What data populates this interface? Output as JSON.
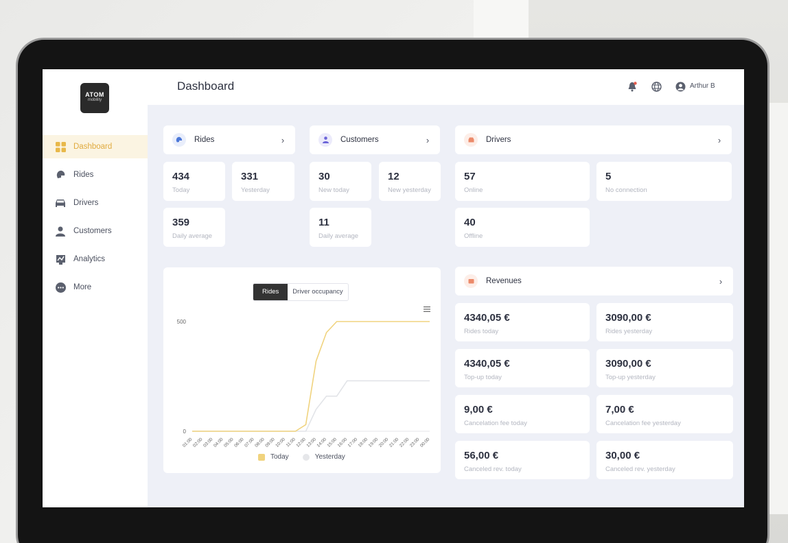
{
  "header": {
    "title": "Dashboard",
    "user_name": "Arthur B"
  },
  "logo": {
    "line1": "ATOM",
    "line2": "mobility"
  },
  "sidebar": {
    "items": [
      {
        "label": "Dashboard",
        "icon": "grid-icon",
        "active": true
      },
      {
        "label": "Rides",
        "icon": "helmet-icon"
      },
      {
        "label": "Drivers",
        "icon": "car-icon"
      },
      {
        "label": "Customers",
        "icon": "person-icon"
      },
      {
        "label": "Analytics",
        "icon": "chart-icon"
      },
      {
        "label": "More",
        "icon": "more-icon"
      }
    ]
  },
  "sections": {
    "rides": {
      "title": "Rides"
    },
    "customers": {
      "title": "Customers"
    },
    "drivers": {
      "title": "Drivers"
    },
    "revenues": {
      "title": "Revenues"
    }
  },
  "stats": {
    "rides_today": {
      "value": "434",
      "label": "Today"
    },
    "rides_yesterday": {
      "value": "331",
      "label": "Yesterday"
    },
    "rides_avg": {
      "value": "359",
      "label": "Daily average"
    },
    "cust_new_today": {
      "value": "30",
      "label": "New today"
    },
    "cust_new_yesterday": {
      "value": "12",
      "label": "New yesterday"
    },
    "cust_avg": {
      "value": "11",
      "label": "Daily average"
    },
    "drivers_online": {
      "value": "57",
      "label": "Online"
    },
    "drivers_noconn": {
      "value": "5",
      "label": "No connection"
    },
    "drivers_offline": {
      "value": "40",
      "label": "Offline"
    },
    "rev_rides_today": {
      "value": "4340,05 €",
      "label": "Rides today"
    },
    "rev_rides_yesterday": {
      "value": "3090,00 €",
      "label": "Rides yesterday"
    },
    "rev_topup_today": {
      "value": "4340,05 €",
      "label": "Top-up today"
    },
    "rev_topup_yesterday": {
      "value": "3090,00 €",
      "label": "Top-up yesterday"
    },
    "rev_cancel_today": {
      "value": "9,00 €",
      "label": "Cancelation fee today"
    },
    "rev_cancel_yesterday": {
      "value": "7,00 €",
      "label": "Cancelation fee yesterday"
    },
    "rev_canceled_today": {
      "value": "56,00 €",
      "label": "Canceled rev. today"
    },
    "rev_canceled_yesterday": {
      "value": "30,00 €",
      "label": "Canceled rev. yesterday"
    }
  },
  "chart_toggle": {
    "rides": "Rides",
    "driver_occupancy": "Driver occupancy"
  },
  "colors": {
    "accent": "#e0aa3e",
    "today_line": "#f0d37e",
    "yesterday_line": "#e2e4e8"
  },
  "chart_data": {
    "type": "line",
    "x": [
      "01:00",
      "02:00",
      "03:00",
      "04:00",
      "05:00",
      "06:00",
      "07:00",
      "08:00",
      "09:00",
      "10:00",
      "11:00",
      "12:00",
      "13:00",
      "14:00",
      "15:00",
      "16:00",
      "17:00",
      "18:00",
      "19:00",
      "20:00",
      "21:00",
      "22:00",
      "23:00",
      "00:00"
    ],
    "series": [
      {
        "name": "Today",
        "values": [
          0,
          0,
          0,
          0,
          0,
          0,
          0,
          0,
          0,
          0,
          0,
          30,
          320,
          450,
          500,
          500,
          500,
          500,
          500,
          500,
          500,
          500,
          500,
          500
        ]
      },
      {
        "name": "Yesterday",
        "values": [
          0,
          0,
          0,
          0,
          0,
          0,
          0,
          0,
          0,
          0,
          0,
          0,
          100,
          160,
          160,
          230,
          230,
          230,
          230,
          230,
          230,
          230,
          230,
          230
        ]
      }
    ],
    "yticks": [
      "0",
      "500"
    ],
    "ylim": [
      0,
      500
    ],
    "grid": false,
    "legend": "bottom"
  }
}
